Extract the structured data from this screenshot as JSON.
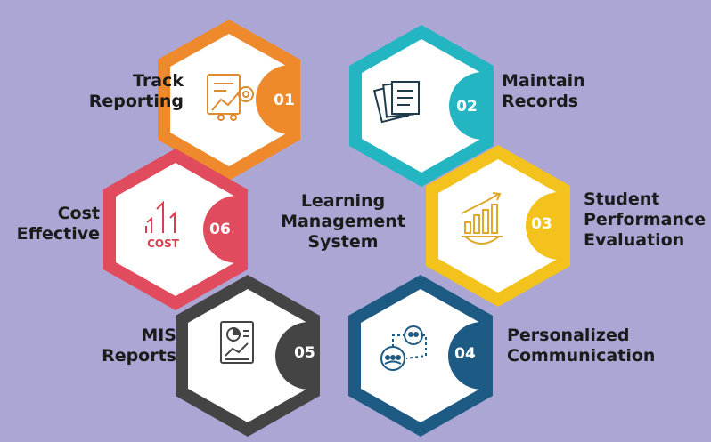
{
  "center": {
    "text": "Learning\nManagement\nSystem"
  },
  "items": [
    {
      "number": "01",
      "label": "Track\nReporting",
      "color": "#ee8a2c",
      "icon": "report-chart-icon"
    },
    {
      "number": "02",
      "label": "Maintain\nRecords",
      "color": "#23b5c2",
      "icon": "documents-icon"
    },
    {
      "number": "03",
      "label": "Student\nPerformance\nEvaluation",
      "color": "#f3c21c",
      "icon": "growth-chart-gear-icon"
    },
    {
      "number": "04",
      "label": "Personalized\nCommunication",
      "color": "#1d5a84",
      "icon": "group-chat-icon"
    },
    {
      "number": "05",
      "label": "MIS\nReports",
      "color": "#444444",
      "icon": "mis-report-icon"
    },
    {
      "number": "06",
      "label": "Cost\nEffective",
      "color": "#e14b5e",
      "icon": "cost-arrows-icon"
    }
  ],
  "colors": {
    "background": "#aba6d3",
    "inner": "#ffffff",
    "text": "#1b1b1b"
  }
}
